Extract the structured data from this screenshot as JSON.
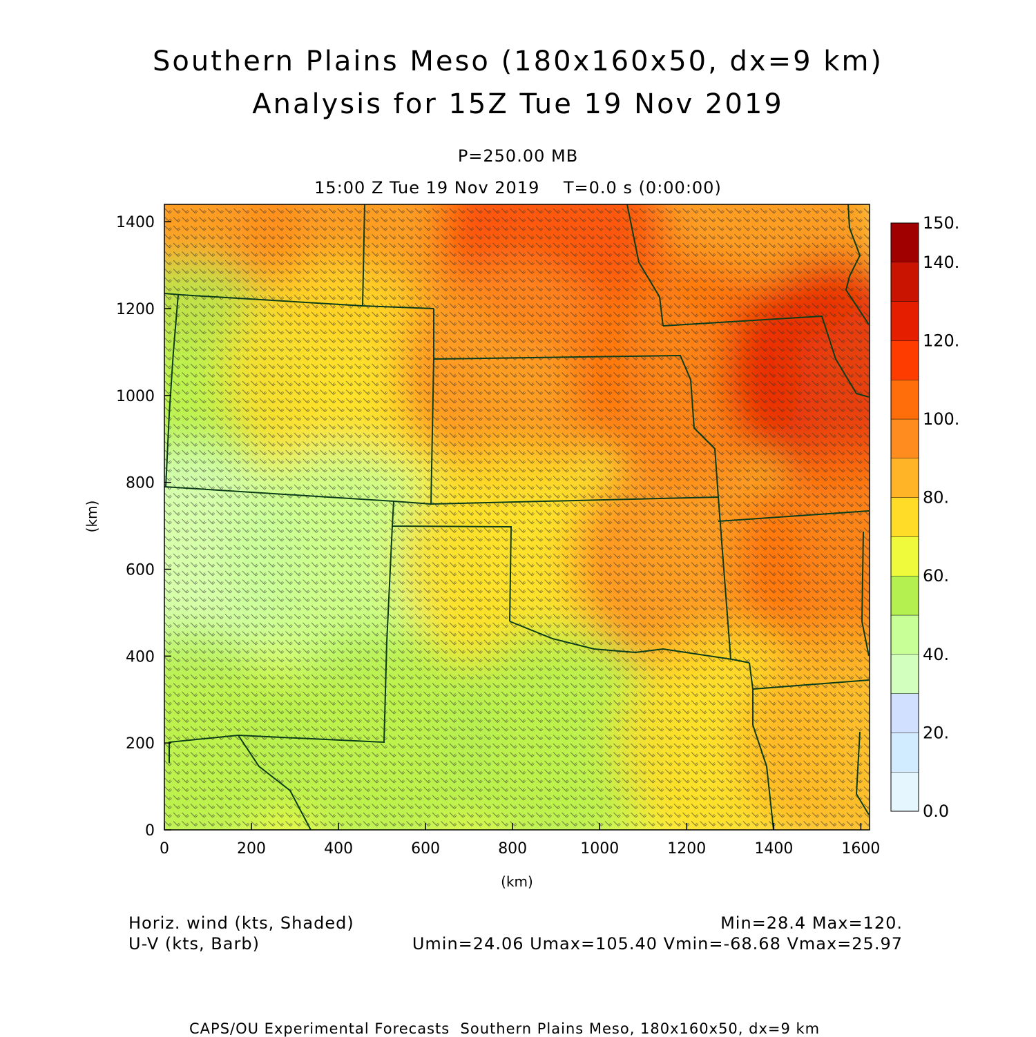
{
  "header": {
    "title_line1": "Southern Plains Meso (180x160x50, dx=9 km)",
    "title_line2": "Analysis for 15Z Tue 19 Nov 2019",
    "level": "P=250.00 MB",
    "valid_time": "15:00 Z Tue 19 Nov 2019    T=0.0 s (0:00:00)"
  },
  "footer": {
    "field1": "Horiz. wind (kts, Shaded)",
    "field2": "U-V (kts, Barb)",
    "stats1": "Min=28.4 Max=120.",
    "stats2": "Umin=24.06 Umax=105.40 Vmin=-68.68 Vmax=25.97",
    "credit": "CAPS/OU Experimental Forecasts  Southern Plains Meso, 180x160x50, dx=9 km"
  },
  "chart_data": {
    "type": "heatmap",
    "title": "Southern Plains Meso (180x160x50, dx=9 km)",
    "xlabel": "(km)",
    "ylabel": "(km)",
    "xlim": [
      0,
      1620
    ],
    "ylim": [
      0,
      1440
    ],
    "x_ticks": [
      "0",
      "200",
      "400",
      "600",
      "800",
      "1000",
      "1200",
      "1400",
      "1600"
    ],
    "y_ticks": [
      "0",
      "200",
      "400",
      "600",
      "800",
      "1000",
      "1200",
      "1400"
    ],
    "colorbar": {
      "levels": [
        0,
        10,
        20,
        30,
        40,
        50,
        60,
        70,
        80,
        90,
        100,
        110,
        120,
        130,
        140,
        150
      ],
      "labels": [
        "0.0",
        "20.",
        "40.",
        "60.",
        "80.",
        "100.",
        "120.",
        "140.",
        "150."
      ],
      "colors": [
        "#e6f6ff",
        "#d2ecff",
        "#d2e0ff",
        "#d2ffbe",
        "#c8ff96",
        "#b4f050",
        "#f0fa3c",
        "#ffdc28",
        "#ffb428",
        "#ff8c1e",
        "#ff6e0a",
        "#ff3c00",
        "#e61e00",
        "#c81400",
        "#a00000"
      ]
    },
    "field_min": 28.4,
    "field_max": 120,
    "u_range": [
      24.06,
      105.4
    ],
    "v_range": [
      -68.68,
      25.97
    ],
    "wind_speed_samples": [
      {
        "x": 50,
        "y": 1380,
        "value": 92
      },
      {
        "x": 450,
        "y": 1380,
        "value": 95
      },
      {
        "x": 900,
        "y": 1380,
        "value": 118
      },
      {
        "x": 1400,
        "y": 1380,
        "value": 98
      },
      {
        "x": 50,
        "y": 1050,
        "value": 55
      },
      {
        "x": 400,
        "y": 1050,
        "value": 72
      },
      {
        "x": 800,
        "y": 1050,
        "value": 92
      },
      {
        "x": 1200,
        "y": 1050,
        "value": 108
      },
      {
        "x": 1550,
        "y": 1050,
        "value": 120
      },
      {
        "x": 50,
        "y": 620,
        "value": 30
      },
      {
        "x": 400,
        "y": 620,
        "value": 48
      },
      {
        "x": 800,
        "y": 620,
        "value": 70
      },
      {
        "x": 1200,
        "y": 620,
        "value": 92
      },
      {
        "x": 1580,
        "y": 620,
        "value": 105
      },
      {
        "x": 50,
        "y": 200,
        "value": 52
      },
      {
        "x": 500,
        "y": 200,
        "value": 55
      },
      {
        "x": 900,
        "y": 200,
        "value": 52
      },
      {
        "x": 1300,
        "y": 200,
        "value": 70
      },
      {
        "x": 1580,
        "y": 200,
        "value": 82
      }
    ]
  }
}
